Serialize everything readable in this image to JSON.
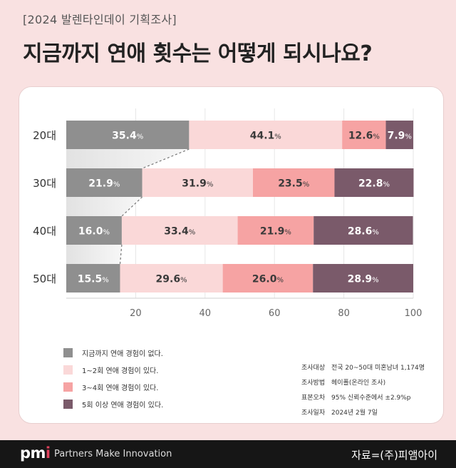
{
  "header": {
    "tag": "[2024 발렌타인데이 기획조사]",
    "title": "지금까지 연애 횟수는 어떻게 되시나요?"
  },
  "chart_data": {
    "type": "bar",
    "orientation": "horizontal",
    "stacked": true,
    "categories": [
      "20대",
      "30대",
      "40대",
      "50대"
    ],
    "series": [
      {
        "name": "지금까지 연애 경험이 없다.",
        "color": "#8f8f8f",
        "values": [
          35.4,
          21.9,
          16.0,
          15.5
        ]
      },
      {
        "name": "1~2회 연애 경험이 있다.",
        "color": "#fad8d8",
        "values": [
          44.1,
          31.9,
          33.4,
          29.6
        ]
      },
      {
        "name": "3~4회 연애 경험이 있다.",
        "color": "#f6a3a3",
        "values": [
          12.6,
          23.5,
          21.9,
          26.0
        ]
      },
      {
        "name": "5회 이상 연애 경험이 있다.",
        "color": "#7a5a6a",
        "values": [
          7.9,
          22.8,
          28.6,
          28.9
        ]
      }
    ],
    "value_labels": [
      [
        "35.4",
        "44.1",
        "12.6",
        "7.9"
      ],
      [
        "21.9",
        "31.9",
        "23.5",
        "22.8"
      ],
      [
        "16.0",
        "33.4",
        "21.9",
        "28.6"
      ],
      [
        "15.5",
        "29.6",
        "26.0",
        "28.9"
      ]
    ],
    "value_suffix": "%",
    "xlim": [
      0,
      100
    ],
    "xticks": [
      20,
      40,
      60,
      80,
      100
    ],
    "grid": true,
    "legend": "bottom-left"
  },
  "survey_info": [
    {
      "key": "조사대상",
      "value": "전국 20~50대 미혼남녀 1,174명"
    },
    {
      "key": "조사방법",
      "value": "헤이폴(온라인 조사)"
    },
    {
      "key": "표본오차",
      "value": "95% 신뢰수준에서 ±2.9%p"
    },
    {
      "key": "조사일자",
      "value": "2024년 2월 7일"
    }
  ],
  "footer": {
    "logo_main": "pm",
    "logo_accent": "i",
    "tagline": "Partners Make Innovation",
    "credit": "자료=(주)피앰아이"
  }
}
